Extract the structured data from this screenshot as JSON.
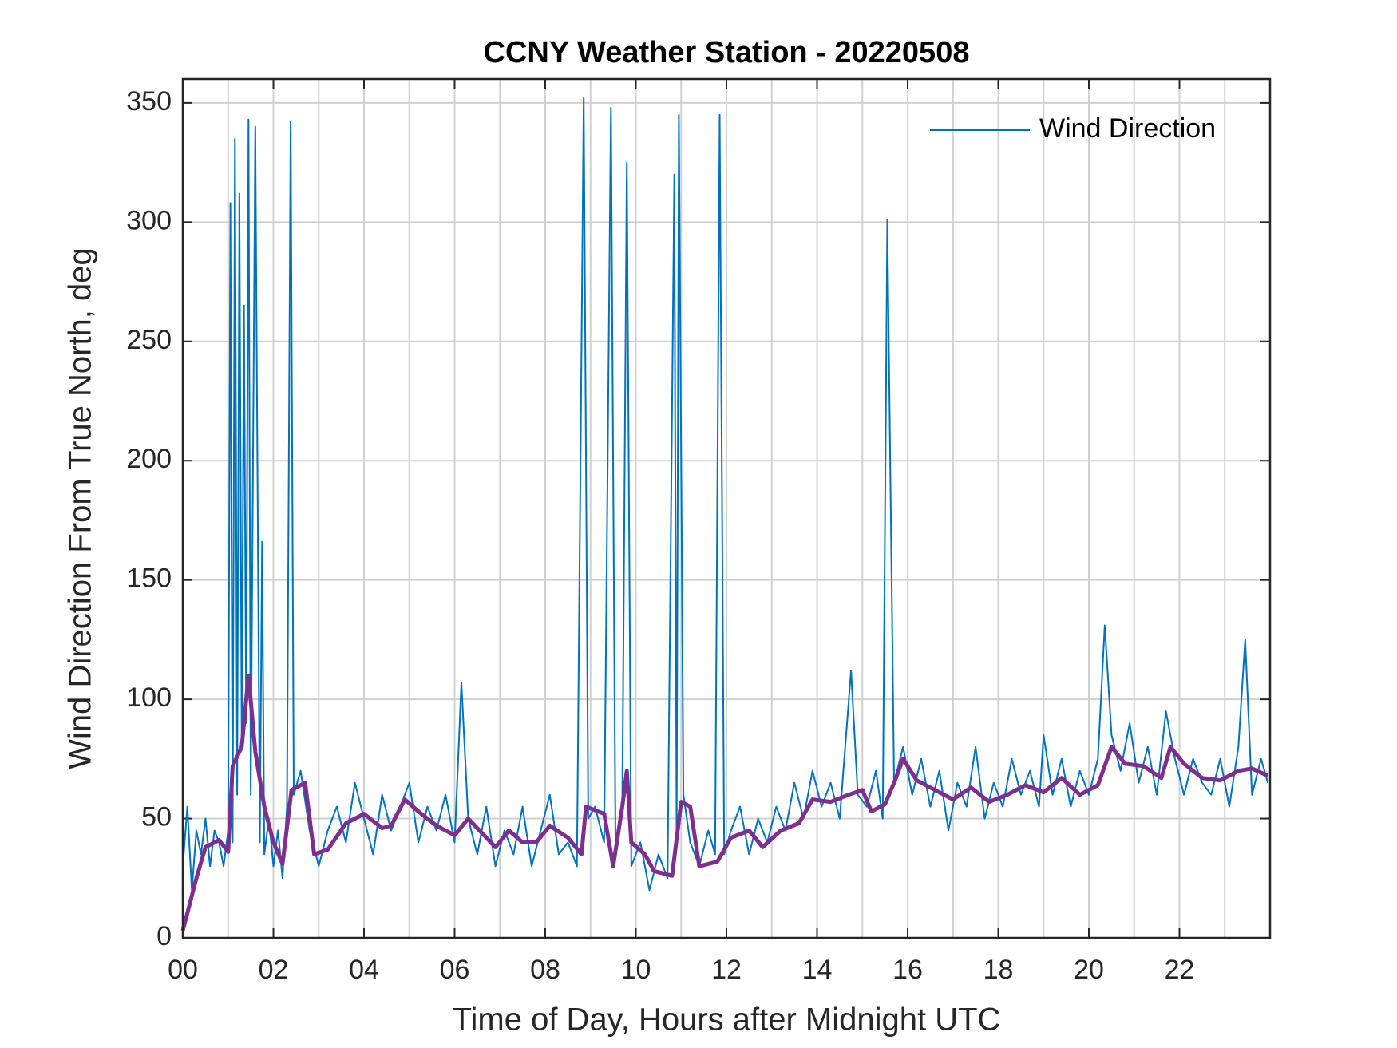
{
  "chart_data": {
    "type": "line",
    "title": "CCNY Weather Station - 20220508",
    "xlabel": "Time of Day, Hours after Midnight UTC",
    "ylabel": "Wind Direction From True North, deg",
    "xlim": [
      0,
      24
    ],
    "ylim": [
      0,
      360
    ],
    "xticks": [
      {
        "value": 0,
        "label": "00"
      },
      {
        "value": 2,
        "label": "02"
      },
      {
        "value": 4,
        "label": "04"
      },
      {
        "value": 6,
        "label": "06"
      },
      {
        "value": 8,
        "label": "08"
      },
      {
        "value": 10,
        "label": "10"
      },
      {
        "value": 12,
        "label": "12"
      },
      {
        "value": 14,
        "label": "14"
      },
      {
        "value": 16,
        "label": "16"
      },
      {
        "value": 18,
        "label": "18"
      },
      {
        "value": 20,
        "label": "20"
      },
      {
        "value": 22,
        "label": "22"
      }
    ],
    "xminorticks": [
      1,
      3,
      5,
      7,
      9,
      11,
      13,
      15,
      17,
      19,
      21,
      23
    ],
    "yticks": [
      0,
      50,
      100,
      150,
      200,
      250,
      300,
      350
    ],
    "grid": true,
    "legend": "upper right",
    "series": [
      {
        "name": "Wind Direction",
        "color": "#0072bd",
        "x": [
          0.0,
          0.1,
          0.2,
          0.3,
          0.4,
          0.5,
          0.6,
          0.7,
          0.8,
          0.9,
          1.0,
          1.05,
          1.1,
          1.15,
          1.2,
          1.25,
          1.3,
          1.35,
          1.4,
          1.45,
          1.5,
          1.6,
          1.7,
          1.75,
          1.8,
          1.9,
          2.0,
          2.1,
          2.2,
          2.3,
          2.38,
          2.45,
          2.6,
          2.8,
          3.0,
          3.2,
          3.4,
          3.6,
          3.8,
          4.0,
          4.2,
          4.4,
          4.6,
          4.8,
          5.0,
          5.2,
          5.4,
          5.6,
          5.8,
          6.0,
          6.15,
          6.3,
          6.5,
          6.7,
          6.9,
          7.1,
          7.3,
          7.5,
          7.7,
          7.9,
          8.1,
          8.3,
          8.5,
          8.7,
          8.85,
          8.95,
          9.1,
          9.3,
          9.45,
          9.55,
          9.7,
          9.8,
          9.9,
          10.1,
          10.3,
          10.5,
          10.7,
          10.85,
          10.9,
          10.95,
          11.05,
          11.2,
          11.4,
          11.6,
          11.75,
          11.85,
          11.95,
          12.1,
          12.3,
          12.5,
          12.7,
          12.9,
          13.1,
          13.3,
          13.5,
          13.7,
          13.9,
          14.1,
          14.3,
          14.5,
          14.75,
          14.9,
          15.1,
          15.3,
          15.45,
          15.55,
          15.7,
          15.9,
          16.1,
          16.3,
          16.5,
          16.7,
          16.9,
          17.1,
          17.3,
          17.5,
          17.7,
          17.9,
          18.1,
          18.3,
          18.5,
          18.7,
          18.9,
          19.0,
          19.2,
          19.4,
          19.6,
          19.8,
          20.0,
          20.2,
          20.35,
          20.5,
          20.7,
          20.9,
          21.1,
          21.3,
          21.5,
          21.7,
          21.9,
          22.1,
          22.3,
          22.5,
          22.7,
          22.9,
          23.1,
          23.3,
          23.45,
          23.6,
          23.8,
          23.95
        ],
        "values": [
          30,
          55,
          20,
          45,
          35,
          50,
          30,
          45,
          40,
          30,
          45,
          308,
          40,
          335,
          60,
          312,
          80,
          265,
          90,
          343,
          60,
          340,
          40,
          166,
          35,
          50,
          30,
          45,
          25,
          55,
          342,
          60,
          70,
          45,
          30,
          45,
          55,
          40,
          65,
          50,
          35,
          60,
          45,
          55,
          65,
          40,
          55,
          45,
          60,
          40,
          107,
          50,
          35,
          55,
          30,
          45,
          35,
          55,
          30,
          45,
          60,
          35,
          40,
          30,
          352,
          50,
          55,
          40,
          348,
          40,
          55,
          325,
          30,
          40,
          20,
          35,
          25,
          320,
          40,
          345,
          60,
          40,
          30,
          45,
          35,
          345,
          35,
          45,
          55,
          35,
          50,
          40,
          55,
          45,
          65,
          50,
          70,
          55,
          65,
          50,
          112,
          60,
          55,
          70,
          50,
          301,
          65,
          80,
          60,
          75,
          55,
          70,
          45,
          65,
          55,
          80,
          50,
          65,
          55,
          75,
          60,
          70,
          55,
          85,
          60,
          75,
          55,
          70,
          60,
          75,
          131,
          85,
          70,
          90,
          65,
          80,
          60,
          95,
          75,
          60,
          75,
          65,
          60,
          75,
          55,
          80,
          125,
          60,
          75,
          65
        ]
      },
      {
        "color": "#7e2f8e",
        "x": [
          0,
          0.3,
          0.5,
          0.8,
          1.0,
          1.1,
          1.3,
          1.45,
          1.6,
          1.8,
          2.0,
          2.2,
          2.4,
          2.7,
          2.9,
          3.2,
          3.6,
          4.0,
          4.4,
          4.6,
          4.9,
          5.2,
          5.6,
          6.0,
          6.3,
          6.6,
          6.9,
          7.2,
          7.5,
          7.8,
          8.1,
          8.5,
          8.8,
          8.9,
          9.3,
          9.5,
          9.7,
          9.8,
          9.9,
          10.2,
          10.4,
          10.8,
          11.0,
          11.2,
          11.4,
          11.8,
          12.1,
          12.5,
          12.8,
          13.2,
          13.6,
          13.9,
          14.3,
          14.7,
          15.0,
          15.2,
          15.5,
          15.7,
          15.9,
          16.2,
          16.6,
          17.0,
          17.4,
          17.8,
          18.2,
          18.6,
          19.0,
          19.4,
          19.8,
          20.2,
          20.5,
          20.8,
          21.2,
          21.6,
          21.8,
          22.1,
          22.5,
          22.9,
          23.3,
          23.6,
          23.95
        ],
        "values": [
          3,
          25,
          38,
          41,
          36,
          72,
          80,
          110,
          78,
          55,
          40,
          31,
          62,
          65,
          35,
          37,
          48,
          52,
          46,
          47,
          58,
          53,
          47,
          43,
          50,
          44,
          38,
          45,
          40,
          40,
          47,
          42,
          35,
          55,
          52,
          30,
          55,
          70,
          40,
          35,
          28,
          26,
          57,
          55,
          30,
          32,
          42,
          45,
          38,
          45,
          48,
          58,
          57,
          60,
          62,
          53,
          56,
          65,
          75,
          66,
          62,
          58,
          63,
          57,
          60,
          64,
          61,
          67,
          60,
          64,
          80,
          73,
          72,
          67,
          80,
          73,
          67,
          66,
          70,
          71,
          68
        ]
      }
    ]
  }
}
